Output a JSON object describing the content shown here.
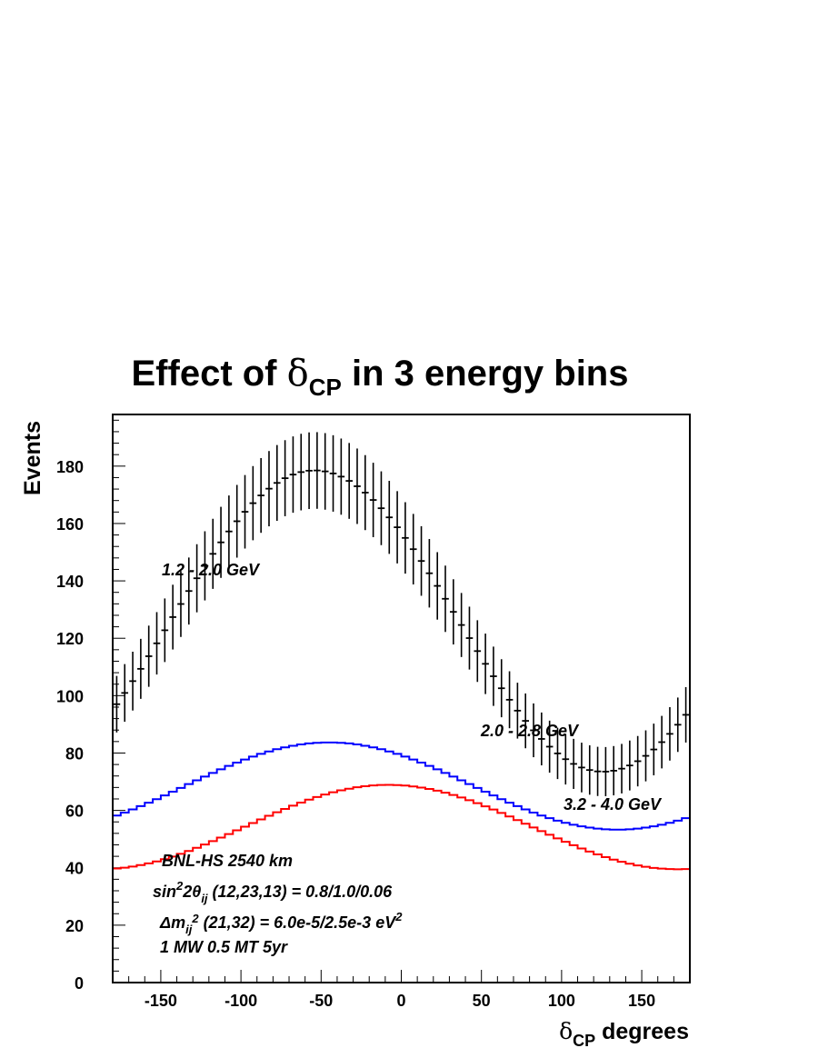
{
  "chart_data": {
    "type": "line",
    "title": "Effect of δCP in 3 energy bins",
    "title_parts": {
      "prefix": "Effect of ",
      "symbol": "δ",
      "subscript": "CP",
      "suffix": " in 3 energy bins"
    },
    "xlabel": "δCP degrees",
    "xlabel_parts": {
      "symbol": "δ",
      "subscript": "CP",
      "suffix": " degrees"
    },
    "ylabel": "Events",
    "xlim": [
      -180,
      180
    ],
    "ylim": [
      0,
      198
    ],
    "xticks": [
      -150,
      -100,
      -50,
      0,
      50,
      100,
      150
    ],
    "yticks": [
      0,
      20,
      40,
      60,
      80,
      100,
      120,
      140,
      160,
      180
    ],
    "grid": false,
    "legend": "none",
    "series": [
      {
        "name": "1.2 - 2.0 GeV",
        "style": "points-with-errors",
        "color": "#000000",
        "mean": 126,
        "amplitude": 52.5,
        "phase_deg": -54,
        "bin_width": 5,
        "error": "sqrt(N)"
      },
      {
        "name": "2.0 - 2.8 GeV",
        "style": "step",
        "color": "#0000ff",
        "mean": 68.5,
        "amplitude": 15.2,
        "phase_deg": -45,
        "bin_width": 5
      },
      {
        "name": "3.2 - 4.0 GeV",
        "style": "step",
        "color": "#ff0000",
        "mean": 54.2,
        "amplitude": 14.7,
        "phase_deg": -8,
        "bin_width": 5
      }
    ]
  },
  "annotations": {
    "label_low": "1.2 - 2.0 GeV",
    "label_mid": "2.0 - 2.8 GeV",
    "label_high": "3.2 - 4.0 GeV",
    "info_line1": "BNL-HS  2540 km",
    "info_line2": {
      "a": "sin",
      "b": "2",
      "c": "2θ",
      "d": "ij",
      "e": " (12,23,13) = 0.8/1.0/0.06"
    },
    "info_line3": {
      "a": "Δm",
      "b": "ij",
      "c": "2",
      "d": " (21,32) = 6.0e-5/2.5e-3 eV",
      "e": "2"
    },
    "info_line4": "1 MW 0.5 MT 5yr"
  }
}
